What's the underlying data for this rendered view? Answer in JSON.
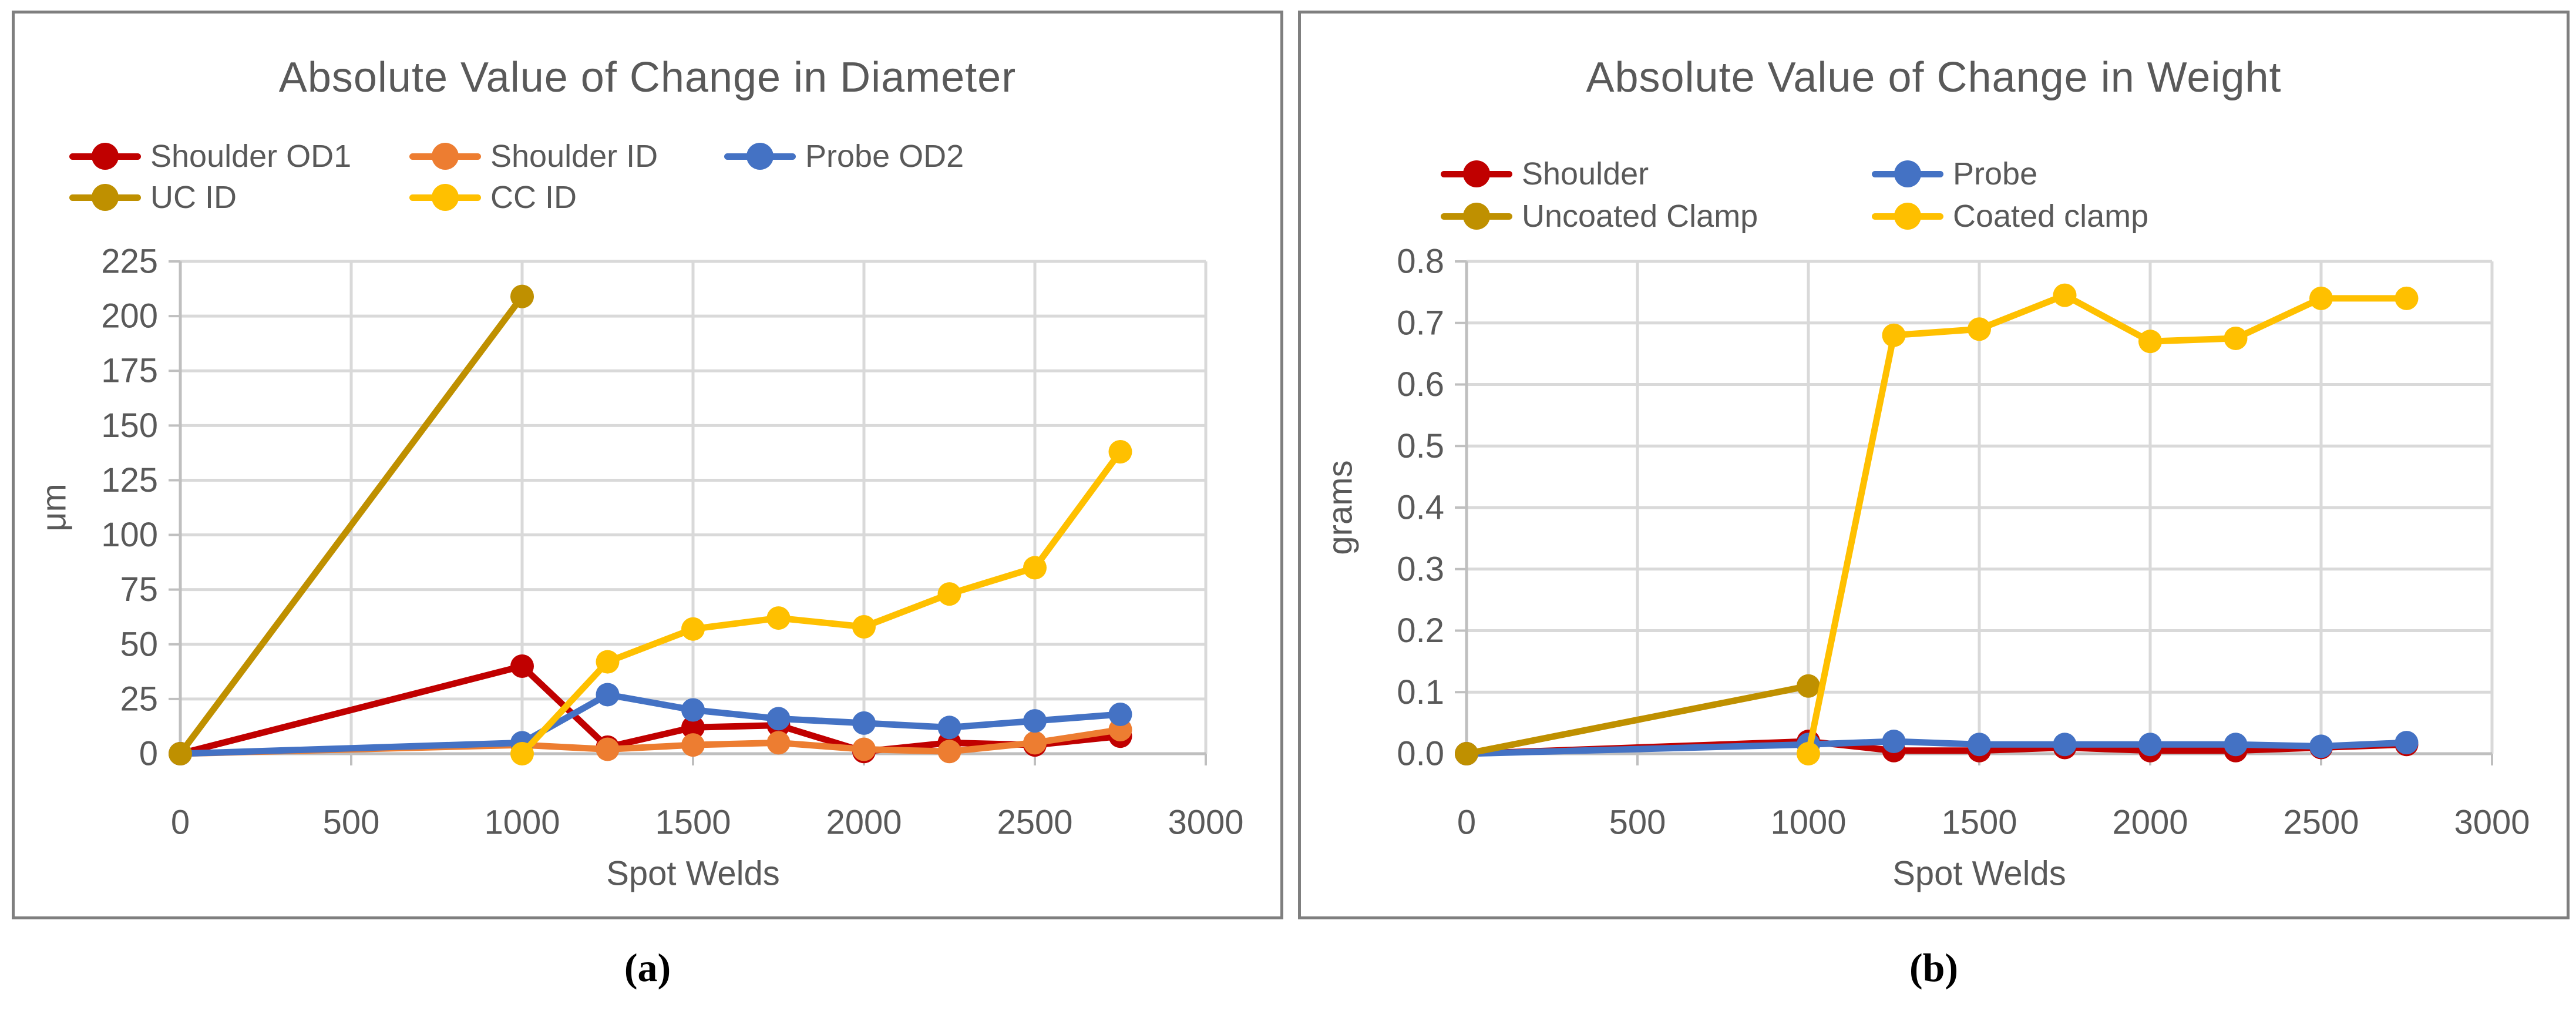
{
  "figure": {
    "background": "#ffffff",
    "panel_border_color": "#7f7f7f",
    "gridline_color": "#d9d9d9",
    "axis_color": "#bfbfbf",
    "text_color": "#595959"
  },
  "chart_data": [
    {
      "id": "a",
      "type": "line",
      "title": "Absolute Value of Change in Diameter",
      "caption": "(a)",
      "xlabel": "Spot Welds",
      "ylabel": "μm",
      "grid": true,
      "legend_position": "top",
      "x_axis": {
        "min": 0,
        "max": 3000,
        "tick_labels": [
          "0",
          "500",
          "1000",
          "1500",
          "2000",
          "2500",
          "3000"
        ]
      },
      "y_axis": {
        "min": 0,
        "max": 225,
        "tick_labels": [
          "0",
          "25",
          "50",
          "75",
          "100",
          "125",
          "150",
          "175",
          "200",
          "225"
        ]
      },
      "legend_rows": [
        [
          "Shoulder OD1",
          "Shoulder ID",
          "Probe OD2"
        ],
        [
          "UC ID",
          "CC ID"
        ]
      ],
      "series": [
        {
          "name": "Shoulder OD1",
          "color": "#C00000",
          "x": [
            0,
            1000,
            1250,
            1500,
            1750,
            2000,
            2250,
            2500,
            2750
          ],
          "y": [
            0,
            40,
            3,
            12,
            13,
            1,
            5,
            4,
            8
          ]
        },
        {
          "name": "Shoulder ID",
          "color": "#ED7D31",
          "x": [
            0,
            1000,
            1250,
            1500,
            1750,
            2000,
            2250,
            2500,
            2750
          ],
          "y": [
            0,
            4,
            2,
            4,
            5,
            2,
            1,
            5,
            11
          ]
        },
        {
          "name": "Probe OD2",
          "color": "#4472C4",
          "x": [
            0,
            1000,
            1250,
            1500,
            1750,
            2000,
            2250,
            2500,
            2750
          ],
          "y": [
            0,
            5,
            27,
            20,
            16,
            14,
            12,
            15,
            18
          ]
        },
        {
          "name": "UC ID",
          "color": "#BF9000",
          "x": [
            0,
            1000
          ],
          "y": [
            0,
            209
          ]
        },
        {
          "name": "CC ID",
          "color": "#FFC000",
          "x": [
            1000,
            1250,
            1500,
            1750,
            2000,
            2250,
            2500,
            2750
          ],
          "y": [
            0,
            42,
            57,
            62,
            58,
            73,
            85,
            138
          ]
        }
      ]
    },
    {
      "id": "b",
      "type": "line",
      "title": "Absolute Value of Change in Weight",
      "caption": "(b)",
      "xlabel": "Spot Welds",
      "ylabel": "grams",
      "grid": true,
      "legend_position": "top",
      "x_axis": {
        "min": 0,
        "max": 3000,
        "tick_labels": [
          "0",
          "500",
          "1000",
          "1500",
          "2000",
          "2500",
          "3000"
        ]
      },
      "y_axis": {
        "min": 0,
        "max": 0.8,
        "tick_labels": [
          "0.0",
          "0.1",
          "0.2",
          "0.3",
          "0.4",
          "0.5",
          "0.6",
          "0.7",
          "0.8"
        ]
      },
      "legend_rows": [
        [
          "Shoulder",
          "Probe"
        ],
        [
          "Uncoated Clamp",
          "Coated clamp"
        ]
      ],
      "series": [
        {
          "name": "Shoulder",
          "color": "#C00000",
          "x": [
            0,
            1000,
            1250,
            1500,
            1750,
            2000,
            2250,
            2500,
            2750
          ],
          "y": [
            0,
            0.02,
            0.005,
            0.005,
            0.01,
            0.005,
            0.005,
            0.01,
            0.015
          ]
        },
        {
          "name": "Probe",
          "color": "#4472C4",
          "x": [
            0,
            1000,
            1250,
            1500,
            1750,
            2000,
            2250,
            2500,
            2750
          ],
          "y": [
            0,
            0.015,
            0.02,
            0.015,
            0.015,
            0.015,
            0.015,
            0.012,
            0.018
          ]
        },
        {
          "name": "Uncoated Clamp",
          "color": "#BF9000",
          "x": [
            0,
            1000
          ],
          "y": [
            0,
            0.11
          ]
        },
        {
          "name": "Coated clamp",
          "color": "#FFC000",
          "x": [
            1000,
            1250,
            1500,
            1750,
            2000,
            2250,
            2500,
            2750
          ],
          "y": [
            0,
            0.68,
            0.69,
            0.745,
            0.67,
            0.675,
            0.74,
            0.74
          ]
        }
      ]
    }
  ]
}
